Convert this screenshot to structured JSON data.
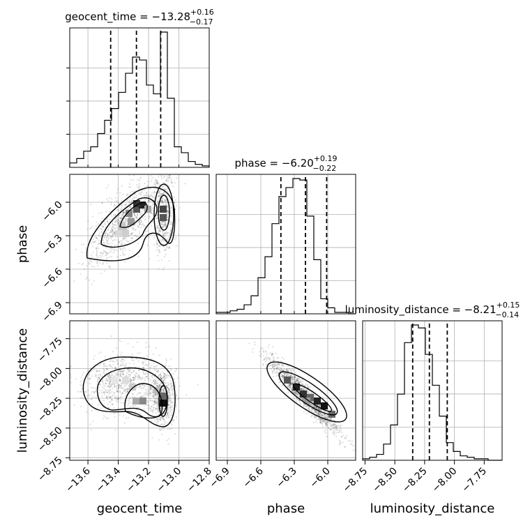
{
  "chart_data": {
    "type": "corner",
    "parameters": [
      "geocent_time",
      "phase",
      "luminosity_distance"
    ],
    "axis_labels": {
      "geocent_time": "geocent_time",
      "phase": "phase",
      "luminosity_distance": "luminosity_distance"
    },
    "ranges": {
      "geocent_time": [
        -13.72,
        -12.8
      ],
      "phase": [
        -7.0,
        -5.75
      ],
      "luminosity_distance": [
        -8.77,
        -7.6
      ]
    },
    "ticks": {
      "geocent_time": [
        -13.6,
        -13.4,
        -13.2,
        -13.0,
        -12.8
      ],
      "phase": [
        -6.9,
        -6.6,
        -6.3,
        -6.0
      ],
      "luminosity_distance": [
        -8.75,
        -8.5,
        -8.25,
        -8.0,
        -7.75
      ]
    },
    "tick_labels": {
      "geocent_time": [
        "−13.6",
        "−13.4",
        "−13.2",
        "−13.0",
        "−12.8"
      ],
      "phase": [
        "−6.9",
        "−6.6",
        "−6.3",
        "−6.0"
      ],
      "luminosity_distance": [
        "−8.75",
        "−8.50",
        "−8.25",
        "−8.00",
        "−7.75"
      ]
    },
    "titles": {
      "geocent_time": {
        "prefix": "geocent_time = ",
        "median": "−13.28",
        "plus": "+0.16",
        "minus": "−0.17"
      },
      "phase": {
        "prefix": "phase = ",
        "median": "−6.20",
        "plus": "+0.19",
        "minus": "−0.22"
      },
      "luminosity_distance": {
        "prefix": "luminosity_distance = ",
        "median": "−8.21",
        "plus": "+0.15",
        "minus": "−0.14"
      }
    },
    "quantiles": {
      "geocent_time": [
        -13.45,
        -13.28,
        -13.12
      ],
      "phase": [
        -6.42,
        -6.2,
        -6.01
      ],
      "luminosity_distance": [
        -8.35,
        -8.21,
        -8.06
      ]
    },
    "histograms": {
      "geocent_time": {
        "edges_start": -13.72,
        "bin_width": 0.046,
        "counts": [
          3,
          6,
          11,
          14,
          23,
          32,
          40,
          51,
          64,
          75,
          73,
          56,
          50,
          92,
          47,
          14,
          10,
          4,
          2,
          1
        ]
      },
      "phase": {
        "edges_start": -7.0,
        "bin_width": 0.0625,
        "counts": [
          1,
          1,
          2,
          3,
          6,
          12,
          24,
          38,
          60,
          78,
          84,
          90,
          89,
          65,
          36,
          10,
          4,
          1,
          1,
          0
        ]
      },
      "luminosity_distance": {
        "edges_start": -8.77,
        "bin_width": 0.0585,
        "counts": [
          1,
          2,
          4,
          11,
          24,
          45,
          80,
          92,
          90,
          72,
          51,
          30,
          12,
          6,
          3,
          2,
          1,
          1,
          0,
          0
        ]
      }
    },
    "grid": true,
    "color": "#000000"
  }
}
